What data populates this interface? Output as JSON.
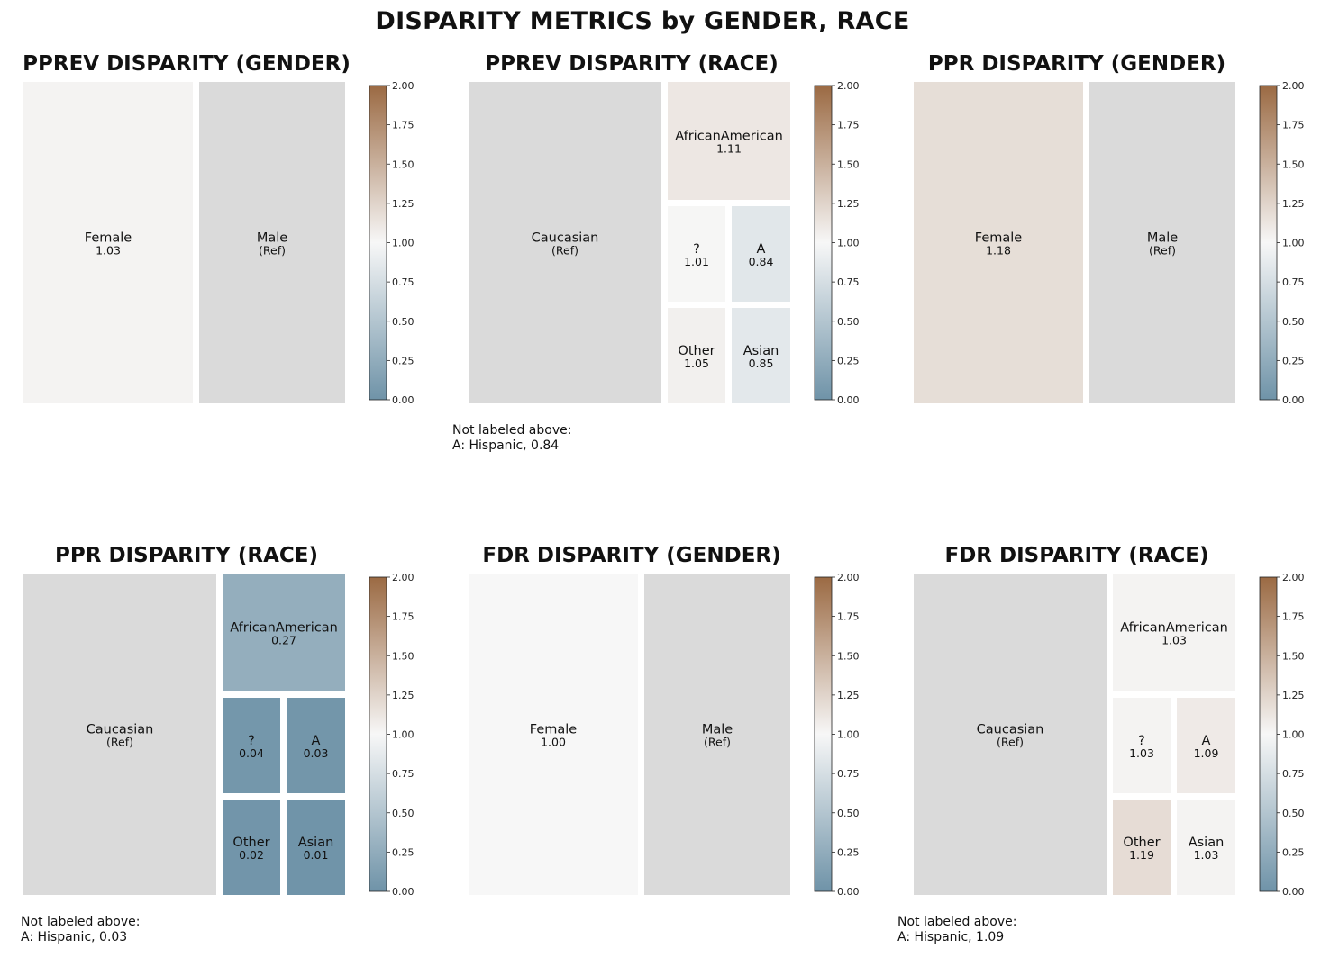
{
  "title": "DISPARITY METRICS by GENDER, RACE",
  "colorbar": {
    "ticks": [
      "0.00",
      "0.25",
      "0.50",
      "0.75",
      "1.00",
      "1.25",
      "1.50",
      "1.75",
      "2.00"
    ],
    "range": [
      0,
      2
    ],
    "colors": {
      "low": "#6f93a8",
      "mid": "#f7f7f7",
      "high": "#9b6a43"
    }
  },
  "ref_color": "#dadada",
  "chart_data": [
    {
      "type": "treemap",
      "title": "PPREV DISPARITY (GENDER)",
      "cells": [
        {
          "name": "Female",
          "value": "1.03",
          "metric": 1.03
        },
        {
          "name": "Male",
          "value": "(Ref)",
          "ref": true
        }
      ],
      "note": []
    },
    {
      "type": "treemap",
      "title": "PPREV DISPARITY (RACE)",
      "cells": [
        {
          "name": "Caucasian",
          "value": "(Ref)",
          "ref": true
        },
        {
          "name": "AfricanAmerican",
          "value": "1.11",
          "metric": 1.11
        },
        {
          "name": "?",
          "value": "1.01",
          "metric": 1.01
        },
        {
          "name": "A",
          "value": "0.84",
          "metric": 0.84
        },
        {
          "name": "Other",
          "value": "1.05",
          "metric": 1.05
        },
        {
          "name": "Asian",
          "value": "0.85",
          "metric": 0.85
        }
      ],
      "note": [
        "Not labeled above:",
        "A: Hispanic, 0.84"
      ]
    },
    {
      "type": "treemap",
      "title": "PPR DISPARITY (GENDER)",
      "cells": [
        {
          "name": "Female",
          "value": "1.18",
          "metric": 1.18
        },
        {
          "name": "Male",
          "value": "(Ref)",
          "ref": true
        }
      ],
      "note": []
    },
    {
      "type": "treemap",
      "title": "PPR DISPARITY (RACE)",
      "cells": [
        {
          "name": "Caucasian",
          "value": "(Ref)",
          "ref": true
        },
        {
          "name": "AfricanAmerican",
          "value": "0.27",
          "metric": 0.27
        },
        {
          "name": "?",
          "value": "0.04",
          "metric": 0.04
        },
        {
          "name": "A",
          "value": "0.03",
          "metric": 0.03
        },
        {
          "name": "Other",
          "value": "0.02",
          "metric": 0.02
        },
        {
          "name": "Asian",
          "value": "0.01",
          "metric": 0.01
        }
      ],
      "note": [
        "Not labeled above:",
        "A: Hispanic, 0.03"
      ]
    },
    {
      "type": "treemap",
      "title": "FDR DISPARITY (GENDER)",
      "cells": [
        {
          "name": "Female",
          "value": "1.00",
          "metric": 1.0
        },
        {
          "name": "Male",
          "value": "(Ref)",
          "ref": true
        }
      ],
      "note": []
    },
    {
      "type": "treemap",
      "title": "FDR DISPARITY (RACE)",
      "cells": [
        {
          "name": "Caucasian",
          "value": "(Ref)",
          "ref": true
        },
        {
          "name": "AfricanAmerican",
          "value": "1.03",
          "metric": 1.03
        },
        {
          "name": "?",
          "value": "1.03",
          "metric": 1.03
        },
        {
          "name": "A",
          "value": "1.09",
          "metric": 1.09
        },
        {
          "name": "Other",
          "value": "1.19",
          "metric": 1.19
        },
        {
          "name": "Asian",
          "value": "1.03",
          "metric": 1.03
        }
      ],
      "note": [
        "Not labeled above:",
        "A: Hispanic, 1.09"
      ]
    }
  ]
}
